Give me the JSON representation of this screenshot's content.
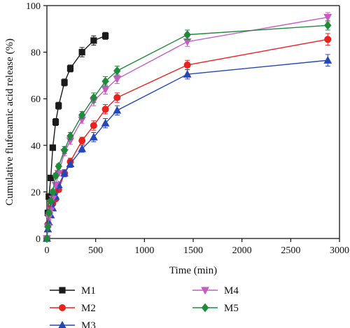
{
  "chart_data": {
    "type": "line",
    "xlabel": "Time (min)",
    "ylabel": "Cumulative flufenamic acid release (%)",
    "xlim": [
      0,
      3000
    ],
    "ylim": [
      0,
      100
    ],
    "xticks": [
      0,
      500,
      1000,
      1500,
      2000,
      2500,
      3000
    ],
    "yticks": [
      0,
      20,
      40,
      60,
      80,
      100
    ],
    "grid": false,
    "legend_position": "bottom",
    "series": [
      {
        "name": "M1",
        "color": "#1a1a1a",
        "marker": "square",
        "points": [
          [
            0,
            0
          ],
          [
            10,
            11
          ],
          [
            20,
            18
          ],
          [
            40,
            26
          ],
          [
            60,
            39
          ],
          [
            90,
            50
          ],
          [
            120,
            57
          ],
          [
            180,
            67
          ],
          [
            240,
            73
          ],
          [
            360,
            80
          ],
          [
            480,
            85
          ],
          [
            600,
            87
          ]
        ],
        "errors": [
          0,
          1,
          1,
          1,
          1,
          1.5,
          1.5,
          1.5,
          1.5,
          2,
          2,
          1.5
        ]
      },
      {
        "name": "M2",
        "color": "#e8221e",
        "marker": "circle",
        "points": [
          [
            0,
            0
          ],
          [
            10,
            6
          ],
          [
            20,
            10
          ],
          [
            40,
            13
          ],
          [
            60,
            15
          ],
          [
            90,
            17
          ],
          [
            120,
            21
          ],
          [
            180,
            28
          ],
          [
            240,
            33
          ],
          [
            360,
            42
          ],
          [
            480,
            48.5
          ],
          [
            600,
            55.5
          ],
          [
            720,
            60.5
          ],
          [
            1440,
            74.5
          ],
          [
            2880,
            85.5
          ]
        ],
        "errors": [
          0,
          1,
          1,
          1,
          1,
          1,
          1,
          1.5,
          1.5,
          1.5,
          2,
          2,
          2,
          2,
          2.5
        ]
      },
      {
        "name": "M3",
        "color": "#2547b8",
        "marker": "triangle-up",
        "points": [
          [
            0,
            0
          ],
          [
            10,
            4
          ],
          [
            20,
            7
          ],
          [
            40,
            10
          ],
          [
            60,
            13
          ],
          [
            90,
            18
          ],
          [
            120,
            23
          ],
          [
            180,
            28
          ],
          [
            240,
            32
          ],
          [
            360,
            38.5
          ],
          [
            480,
            43.5
          ],
          [
            600,
            49.5
          ],
          [
            720,
            55
          ],
          [
            1440,
            70.5
          ],
          [
            2880,
            76.5
          ]
        ],
        "errors": [
          0,
          1,
          1,
          1,
          1,
          1,
          1,
          1.5,
          1.5,
          1.5,
          2,
          2,
          2,
          2,
          2.5
        ]
      },
      {
        "name": "M4",
        "color": "#c55bc5",
        "marker": "triangle-down",
        "points": [
          [
            0,
            0
          ],
          [
            10,
            5
          ],
          [
            20,
            9
          ],
          [
            40,
            12
          ],
          [
            60,
            17
          ],
          [
            90,
            23
          ],
          [
            120,
            28
          ],
          [
            180,
            37
          ],
          [
            240,
            42
          ],
          [
            360,
            51
          ],
          [
            480,
            59
          ],
          [
            600,
            64
          ],
          [
            720,
            68.5
          ],
          [
            1440,
            84.5
          ],
          [
            2880,
            95
          ]
        ],
        "errors": [
          0,
          1,
          1,
          1,
          1,
          1,
          1,
          1.5,
          1.5,
          1.5,
          2,
          2,
          2,
          2,
          2
        ]
      },
      {
        "name": "M5",
        "color": "#1e8a3a",
        "marker": "diamond",
        "points": [
          [
            0,
            0
          ],
          [
            10,
            5
          ],
          [
            20,
            11
          ],
          [
            40,
            16
          ],
          [
            60,
            20
          ],
          [
            90,
            27
          ],
          [
            120,
            31
          ],
          [
            180,
            38
          ],
          [
            240,
            44
          ],
          [
            360,
            53
          ],
          [
            480,
            60.5
          ],
          [
            600,
            67.5
          ],
          [
            720,
            72
          ],
          [
            1440,
            87.5
          ],
          [
            2880,
            91.5
          ]
        ],
        "errors": [
          0,
          1,
          1,
          1,
          1,
          1,
          1,
          1.5,
          1.5,
          1.5,
          2,
          2,
          2,
          2,
          2
        ]
      }
    ]
  }
}
